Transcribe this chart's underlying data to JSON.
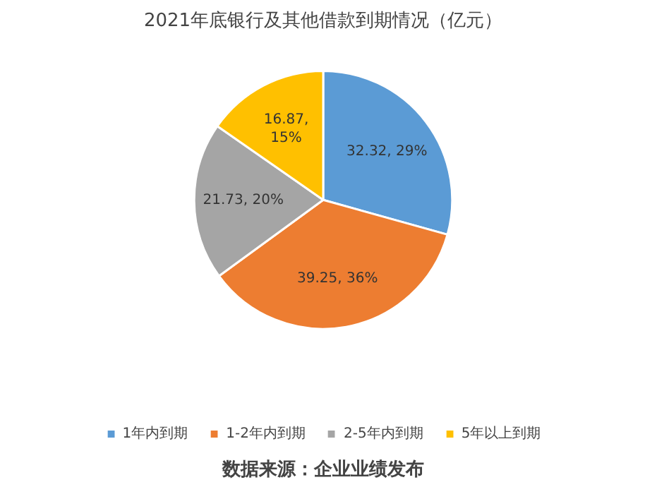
{
  "chart_data": {
    "type": "pie",
    "title": "2021年底银行及其他借款到期情况（亿元）",
    "categories": [
      "1年内到期",
      "1-2年内到期",
      "2-5年内到期",
      "5年以上到期"
    ],
    "values": [
      32.32,
      39.25,
      21.73,
      16.87
    ],
    "colors": [
      "#5b9bd5",
      "#ed7d31",
      "#a5a5a5",
      "#ffc000"
    ],
    "value_labels": [
      "32.32, 29%",
      "39.25, 36%",
      "21.73, 20%",
      "16.87, 15%"
    ],
    "legend": "bottom",
    "annotations": [
      "数据来源：企业业绩发布"
    ]
  }
}
